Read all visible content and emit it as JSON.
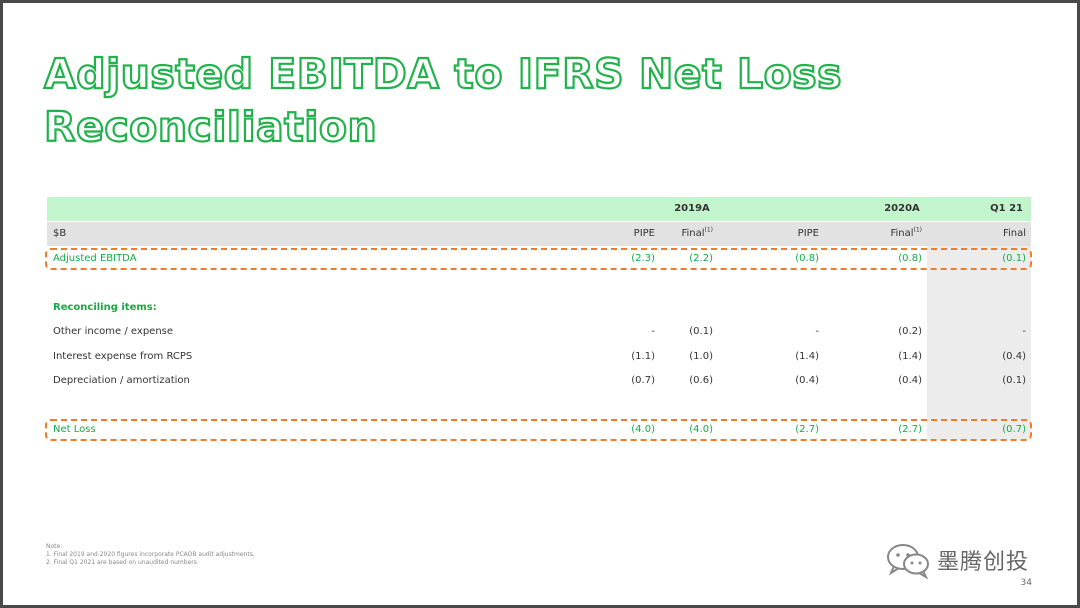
{
  "title": {
    "line1": "Adjusted EBITDA to IFRS Net Loss",
    "line2": "Reconciliation"
  },
  "table": {
    "header_years": {
      "y2019": "2019A",
      "y2020": "2020A",
      "q1": "Q1 21"
    },
    "header_cols": {
      "unit": "$B",
      "c1": "PIPE",
      "c2": "Final",
      "c2_sup": "(1)",
      "c3": "PIPE",
      "c4": "Final",
      "c4_sup": "(1)",
      "c5": "Final"
    },
    "adjusted_ebitda": {
      "label": "Adjusted EBITDA",
      "v1": "(2.3)",
      "v2": "(2.2)",
      "v3": "(0.8)",
      "v4": "(0.8)",
      "v5": "(0.1)"
    },
    "reconciling_heading": "Reconciling items:",
    "items": [
      {
        "label": "Other income / expense",
        "v1": "-",
        "v2": "(0.1)",
        "v3": "-",
        "v4": "(0.2)",
        "v5": "-"
      },
      {
        "label": "Interest expense from RCPS",
        "v1": "(1.1)",
        "v2": "(1.0)",
        "v3": "(1.4)",
        "v4": "(1.4)",
        "v5": "(0.4)"
      },
      {
        "label": "Depreciation / amortization",
        "v1": "(0.7)",
        "v2": "(0.6)",
        "v3": "(0.4)",
        "v4": "(0.4)",
        "v5": "(0.1)"
      }
    ],
    "net_loss": {
      "label": "Net Loss",
      "v1": "(4.0)",
      "v2": "(4.0)",
      "v3": "(2.7)",
      "v4": "(2.7)",
      "v5": "(0.7)"
    }
  },
  "notes": {
    "heading": "Note:",
    "n1": "1. Final 2019 and 2020 figures incorporate PCAOB audit adjustments.",
    "n2": "2. Final Q1 2021 are based on unaudited numbers"
  },
  "brand": {
    "name": "墨腾创投",
    "icon": "wechat-icon"
  },
  "page_number": "34",
  "colors": {
    "title_green": "#22b24c",
    "row_green": "#16a945",
    "header_green": "#c3f5cd",
    "dash_orange": "#f07c2a"
  }
}
